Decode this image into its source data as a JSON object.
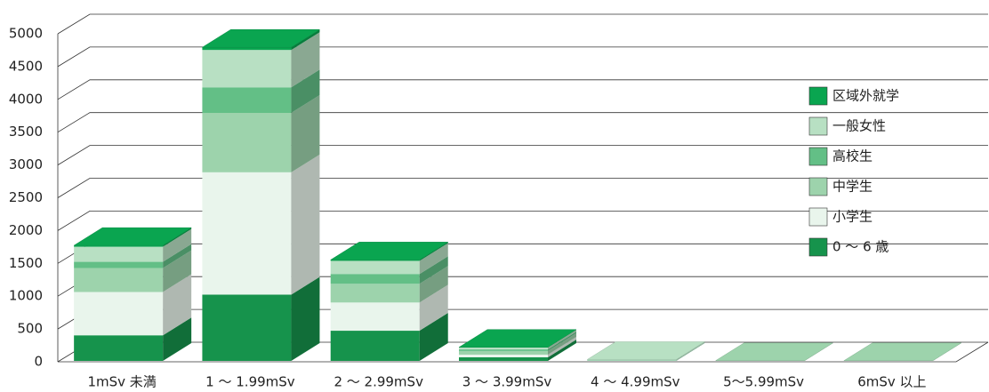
{
  "chart_data": {
    "type": "bar3d",
    "categories": [
      "1mSv 未満",
      "1 〜 1.99mSv",
      "2 〜 2.99mSv",
      "3 〜 3.99mSv",
      "4 〜 4.99mSv",
      "5〜5.99mSv",
      "6mSv 以上"
    ],
    "series": [
      {
        "name": "0 〜 6 歳",
        "color": "#16934c",
        "values": [
          390,
          1010,
          460,
          55,
          5,
          1,
          1
        ]
      },
      {
        "name": "小学生",
        "color": "#e9f5ec",
        "values": [
          660,
          1865,
          430,
          40,
          5,
          1,
          1
        ]
      },
      {
        "name": "中学生",
        "color": "#9dd3ac",
        "values": [
          365,
          905,
          285,
          55,
          5,
          1,
          1
        ]
      },
      {
        "name": "高校生",
        "color": "#63bf86",
        "values": [
          95,
          390,
          150,
          25,
          3,
          0,
          0
        ]
      },
      {
        "name": "一般女性",
        "color": "#b8e0c3",
        "values": [
          230,
          570,
          200,
          30,
          3,
          0,
          0
        ]
      },
      {
        "name": "区域外就学",
        "color": "#0aa550",
        "values": [
          20,
          40,
          15,
          2,
          0,
          0,
          0
        ]
      }
    ],
    "ylim": [
      0,
      5000
    ],
    "yticks": [
      0,
      500,
      1000,
      1500,
      2000,
      2500,
      3000,
      3500,
      4000,
      4500,
      5000
    ],
    "grid": true,
    "stacked": true
  }
}
